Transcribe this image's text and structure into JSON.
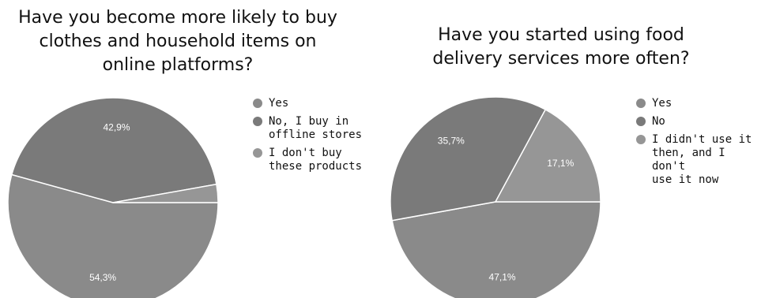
{
  "chart_data": [
    {
      "type": "pie",
      "title": "Have you become more likely to buy\nclothes and household items on\nonline platforms?",
      "categories": [
        "Yes",
        "No, I buy in offline stores",
        "I don't buy these products"
      ],
      "legend_lines": [
        [
          "Yes"
        ],
        [
          "No, I buy in",
          "offline stores"
        ],
        [
          "I don't buy",
          "these products"
        ]
      ],
      "values": [
        54.3,
        42.9,
        2.8
      ],
      "data_labels": [
        "54,3%",
        "42,9%",
        ""
      ],
      "colors": [
        "#8a8a8a",
        "#7a7a7a",
        "#969696"
      ],
      "legend_placement": "right"
    },
    {
      "type": "pie",
      "title": "Have you started using food\ndelivery services more often?",
      "categories": [
        "Yes",
        "No",
        "I didn't use it then, and I don't use it now"
      ],
      "legend_lines": [
        [
          "Yes"
        ],
        [
          "No"
        ],
        [
          "I didn't use it",
          "then, and I don't",
          "use it now"
        ]
      ],
      "values": [
        47.1,
        35.7,
        17.1
      ],
      "data_labels": [
        "47,1%",
        "35,7%",
        "17,1%"
      ],
      "colors": [
        "#8a8a8a",
        "#7a7a7a",
        "#969696"
      ],
      "legend_placement": "right"
    }
  ]
}
